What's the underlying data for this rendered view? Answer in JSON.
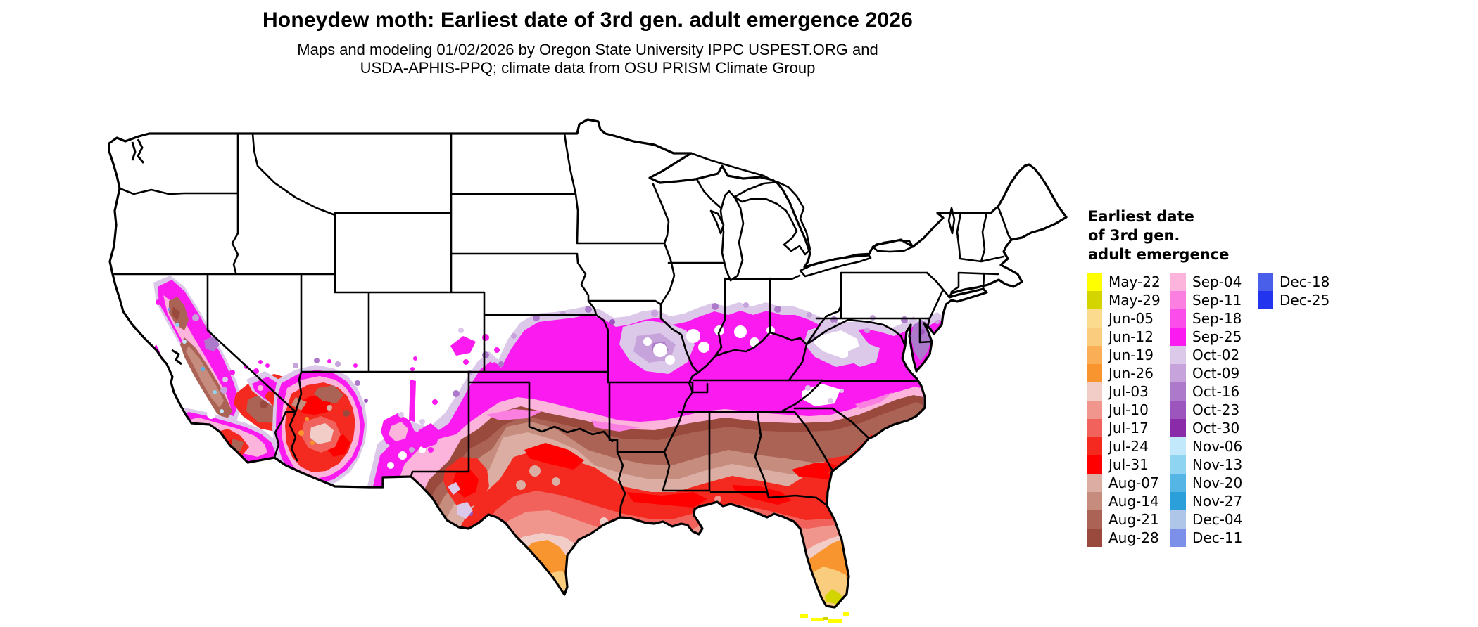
{
  "header": {
    "title": "Honeydew moth: Earliest date of 3rd gen. adult emergence 2026",
    "subtitle_line1": "Maps and modeling 01/02/2026 by Oregon State University IPPC USPEST.ORG and",
    "subtitle_line2": "USDA-APHIS-PPQ; climate data from OSU PRISM Climate Group"
  },
  "legend": {
    "title_lines": [
      "Earliest date",
      "of 3rd gen.",
      "adult emergence"
    ],
    "columns": [
      {
        "entries": [
          {
            "label": "May-22",
            "color": "#FFFF00"
          },
          {
            "label": "May-29",
            "color": "#D4D400"
          },
          {
            "label": "Jun-05",
            "color": "#FBDC8F"
          },
          {
            "label": "Jun-12",
            "color": "#FACC7D"
          },
          {
            "label": "Jun-19",
            "color": "#FAAE55"
          },
          {
            "label": "Jun-26",
            "color": "#F9952F"
          },
          {
            "label": "Jul-03",
            "color": "#F2CDC8"
          },
          {
            "label": "Jul-10",
            "color": "#F1968D"
          },
          {
            "label": "Jul-17",
            "color": "#F0625B"
          },
          {
            "label": "Jul-24",
            "color": "#F4291F"
          },
          {
            "label": "Jul-31",
            "color": "#FE0000"
          },
          {
            "label": "Aug-07",
            "color": "#DCAEA3"
          },
          {
            "label": "Aug-14",
            "color": "#C68C7D"
          },
          {
            "label": "Aug-21",
            "color": "#AB6355"
          },
          {
            "label": "Aug-28",
            "color": "#9A493D"
          }
        ]
      },
      {
        "entries": [
          {
            "label": "Sep-04",
            "color": "#FCB4DD"
          },
          {
            "label": "Sep-11",
            "color": "#FB7FE1"
          },
          {
            "label": "Sep-18",
            "color": "#FB4DE9"
          },
          {
            "label": "Sep-25",
            "color": "#FB1AF0"
          },
          {
            "label": "Oct-02",
            "color": "#DCC8E9"
          },
          {
            "label": "Oct-09",
            "color": "#C7A3DB"
          },
          {
            "label": "Oct-16",
            "color": "#AC79CB"
          },
          {
            "label": "Oct-23",
            "color": "#9C55BD"
          },
          {
            "label": "Oct-30",
            "color": "#8A2BA9"
          },
          {
            "label": "Nov-06",
            "color": "#C2E9FB"
          },
          {
            "label": "Nov-13",
            "color": "#8FD5F2"
          },
          {
            "label": "Nov-20",
            "color": "#55B5E5"
          },
          {
            "label": "Nov-27",
            "color": "#2B9FD9"
          },
          {
            "label": "Dec-04",
            "color": "#AFC6E9"
          },
          {
            "label": "Dec-11",
            "color": "#7D90E9"
          }
        ]
      },
      {
        "entries": [
          {
            "label": "Dec-18",
            "color": "#4A5FE9"
          },
          {
            "label": "Dec-25",
            "color": "#2334EE"
          }
        ]
      }
    ]
  },
  "map": {
    "land_color": "#FFFFFF",
    "border_color": "#000000",
    "background_color": "#FFFFFF"
  }
}
